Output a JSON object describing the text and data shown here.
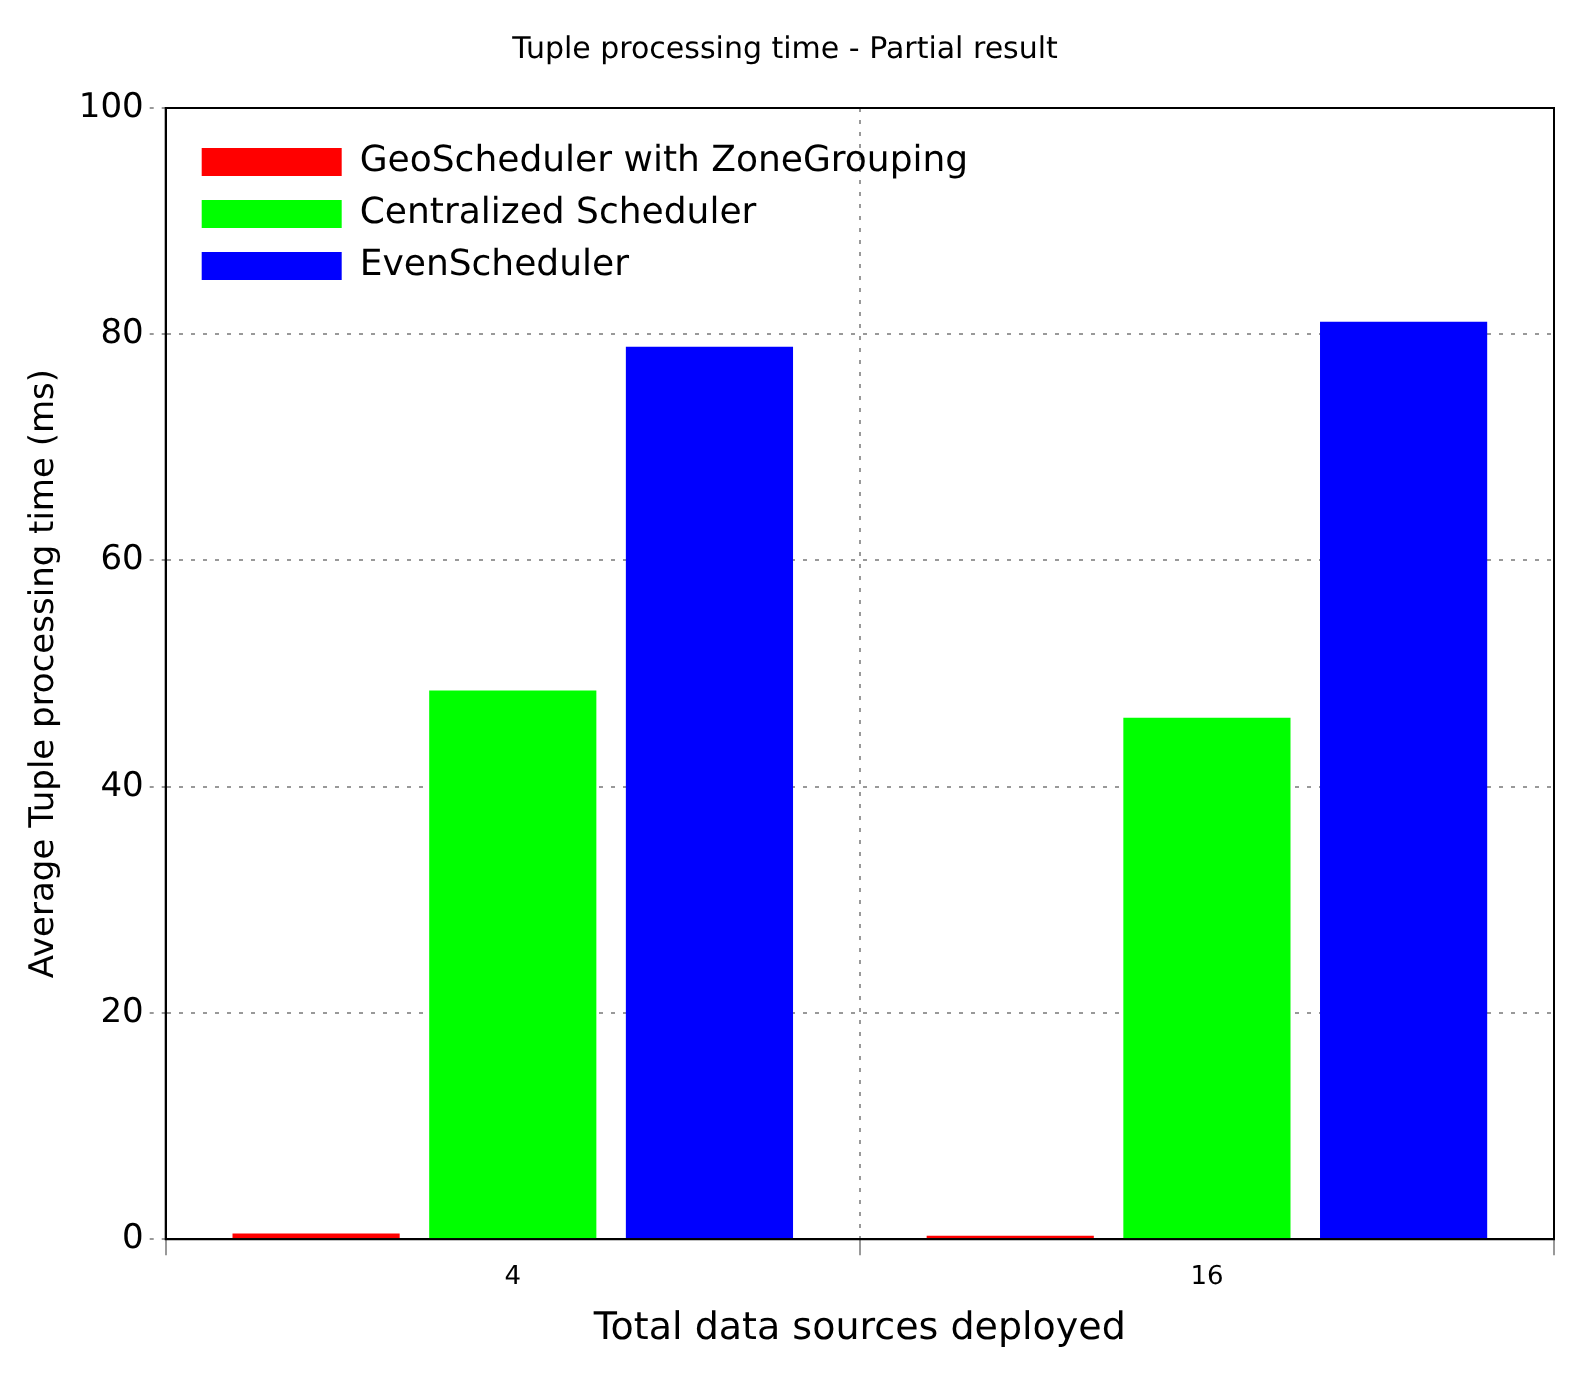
{
  "chart_data": {
    "type": "bar",
    "title": "Tuple processing time - Partial result",
    "xlabel": "Total data sources deployed",
    "ylabel": "Average Tuple processing time (ms)",
    "categories": [
      "4",
      "16"
    ],
    "series": [
      {
        "name": "GeoScheduler with ZoneGrouping",
        "color": "#ff0000",
        "values": [
          0.5,
          0.3
        ]
      },
      {
        "name": "Centralized Scheduler",
        "color": "#00ff00",
        "values": [
          48.5,
          46.1
        ]
      },
      {
        "name": "EvenScheduler",
        "color": "#0000ff",
        "values": [
          78.9,
          81.1
        ]
      }
    ],
    "ylim": [
      0,
      100
    ],
    "yticks": [
      0,
      20,
      40,
      60,
      80,
      100
    ],
    "grid": true,
    "legend": "top left"
  }
}
